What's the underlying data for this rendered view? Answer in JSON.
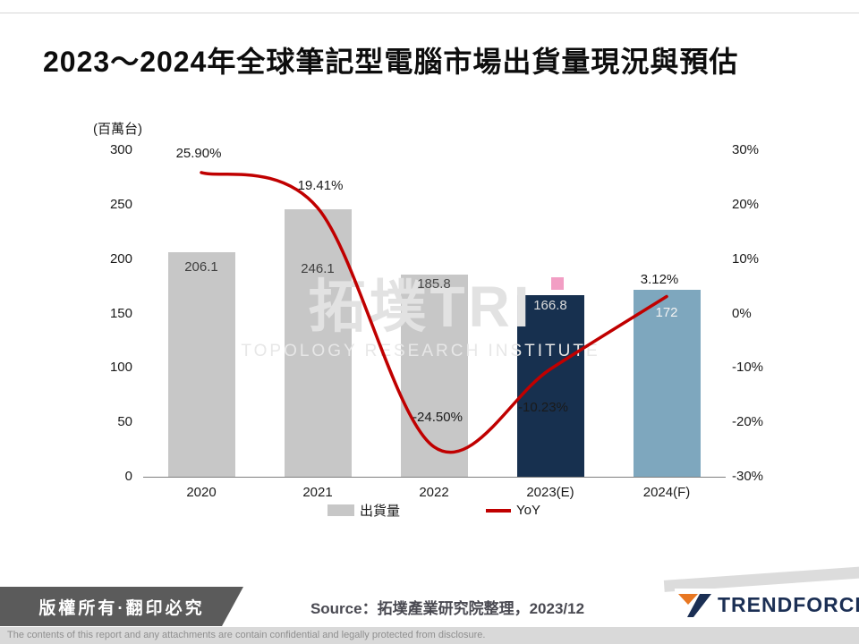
{
  "title": "2023～2024年全球筆記型電腦市場出貨量現況與預估",
  "watermark": {
    "line1": "拓墣TRI",
    "line2": "TOPOLOGY RESEARCH INSTITUTE"
  },
  "chart_data": {
    "type": "combo-bar-line",
    "categories": [
      "2020",
      "2021",
      "2022",
      "2023(E)",
      "2024(F)"
    ],
    "series": [
      {
        "name": "出貨量",
        "type": "bar",
        "values": [
          206.1,
          246.1,
          185.8,
          166.8,
          172
        ],
        "value_labels": [
          "206.1",
          "246.1",
          "185.8",
          "166.8",
          "172"
        ],
        "bar_colors": [
          "#c7c7c7",
          "#c7c7c7",
          "#c7c7c7",
          "#17304f",
          "#7ea7be"
        ],
        "label_colors": [
          "#3f3f3f",
          "#3f3f3f",
          "#4a4a4a",
          "#dcdcdc",
          "#f2f2f2"
        ]
      },
      {
        "name": "YoY",
        "type": "line",
        "values": [
          25.9,
          19.41,
          -24.5,
          -10.23,
          3.12
        ],
        "value_labels": [
          "25.90%",
          "19.41%",
          "-24.50%",
          "-10.23%",
          "3.12%"
        ],
        "color": "#c00000"
      }
    ],
    "left_axis": {
      "label": "(百萬台)",
      "min": 0,
      "max": 300,
      "ticks": [
        300,
        250,
        200,
        150,
        100,
        50,
        0
      ]
    },
    "right_axis": {
      "min": -30,
      "max": 30,
      "ticks": [
        "30%",
        "20%",
        "10%",
        "0%",
        "-10%",
        "-20%",
        "-30%"
      ]
    },
    "legend_position": "bottom",
    "grid": false
  },
  "footer": {
    "copyright": "版權所有·翻印必究",
    "source": "Source：拓墣產業研究院整理，2023/12",
    "brand": "TRENDFORCE",
    "brand_colors": {
      "navy": "#1b2f54",
      "orange": "#e87722"
    },
    "disclaimer": "The contents of this report and any attachments are contain confidential and legally protected from disclosure."
  }
}
